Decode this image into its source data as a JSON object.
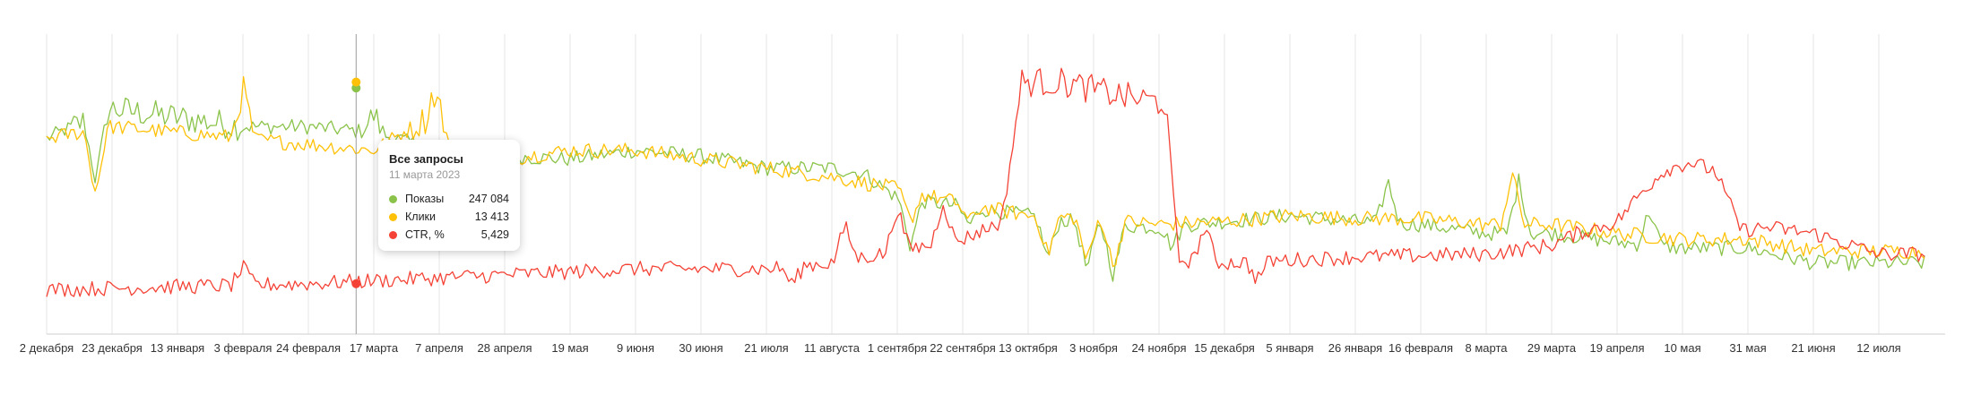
{
  "chart_data": {
    "type": "line",
    "x_ticks": [
      "2 декабря",
      "23 декабря",
      "13 января",
      "3 февраля",
      "24 февраля",
      "17 марта",
      "7 апреля",
      "28 апреля",
      "19 мая",
      "9 июня",
      "30 июня",
      "21 июля",
      "11 августа",
      "1 сентября",
      "22 сентября",
      "13 октября",
      "3 ноября",
      "24 ноября",
      "15 декабря",
      "5 января",
      "26 января",
      "16 февраля",
      "8 марта",
      "29 марта",
      "19 апреля",
      "10 мая",
      "31 мая",
      "21 июня",
      "12 июля"
    ],
    "grid": true,
    "series_colors": {
      "shows": "#8bc34a",
      "clicks": "#ffc107",
      "ctr": "#f44336"
    },
    "series": [
      {
        "key": "shows",
        "anchors": [
          [
            0,
            66
          ],
          [
            1,
            76
          ],
          [
            2,
            73
          ],
          [
            3,
            70
          ],
          [
            4,
            70
          ],
          [
            5,
            68
          ],
          [
            6,
            62
          ],
          [
            7,
            60
          ],
          [
            8,
            59
          ],
          [
            9,
            62
          ],
          [
            10,
            60
          ],
          [
            11,
            56
          ],
          [
            12,
            56
          ],
          [
            12.5,
            54
          ],
          [
            13,
            46
          ],
          [
            14,
            43
          ],
          [
            15,
            40
          ],
          [
            16,
            37
          ],
          [
            17,
            36
          ],
          [
            18,
            38
          ],
          [
            19,
            40
          ],
          [
            20,
            38
          ],
          [
            21,
            37
          ],
          [
            22,
            34
          ],
          [
            23,
            34
          ],
          [
            24,
            31
          ],
          [
            25,
            29
          ],
          [
            26,
            29
          ],
          [
            27,
            24
          ],
          [
            28,
            24
          ]
        ],
        "spikes": [
          [
            0.75,
            -22
          ],
          [
            5,
            6
          ],
          [
            13.2,
            -16
          ],
          [
            14.1,
            -6
          ],
          [
            15.3,
            -14
          ],
          [
            15.9,
            -16
          ],
          [
            16.3,
            -17
          ],
          [
            17.2,
            -7
          ],
          [
            20.5,
            14
          ],
          [
            22.5,
            18
          ],
          [
            24.5,
            12
          ]
        ]
      },
      {
        "key": "clicks",
        "anchors": [
          [
            0,
            66
          ],
          [
            1,
            70
          ],
          [
            2,
            68
          ],
          [
            3,
            66
          ],
          [
            4,
            64
          ],
          [
            5,
            62
          ],
          [
            5.9,
            74
          ],
          [
            6,
            60
          ],
          [
            7,
            59
          ],
          [
            8,
            62
          ],
          [
            9,
            62
          ],
          [
            10,
            59
          ],
          [
            11,
            56
          ],
          [
            12,
            53
          ],
          [
            12.5,
            51
          ],
          [
            13,
            49
          ],
          [
            14,
            44
          ],
          [
            15,
            40
          ],
          [
            16,
            39
          ],
          [
            17,
            37
          ],
          [
            18,
            38
          ],
          [
            19,
            40
          ],
          [
            20,
            39
          ],
          [
            21,
            39
          ],
          [
            22,
            37
          ],
          [
            23,
            37
          ],
          [
            24,
            34
          ],
          [
            25,
            32
          ],
          [
            26,
            32
          ],
          [
            27,
            28
          ],
          [
            28,
            28
          ]
        ],
        "spikes": [
          [
            0.75,
            -22
          ],
          [
            3,
            17
          ],
          [
            6,
            18
          ],
          [
            13.2,
            -10
          ],
          [
            14.1,
            -6
          ],
          [
            15.3,
            -13
          ],
          [
            15.9,
            -15
          ],
          [
            16.3,
            -16
          ],
          [
            22.4,
            17
          ]
        ]
      },
      {
        "key": "ctr",
        "anchors": [
          [
            0,
            15
          ],
          [
            4,
            17
          ],
          [
            5,
            18
          ],
          [
            7,
            20
          ],
          [
            9,
            22
          ],
          [
            11,
            22
          ],
          [
            12,
            24
          ],
          [
            13,
            28
          ],
          [
            14,
            32
          ],
          [
            14.6,
            38
          ],
          [
            14.9,
            85
          ],
          [
            15.5,
            85
          ],
          [
            16.5,
            80
          ],
          [
            17.1,
            78
          ],
          [
            17.3,
            25
          ],
          [
            18,
            24
          ],
          [
            20,
            26
          ],
          [
            22,
            27
          ],
          [
            23,
            30
          ],
          [
            23.4,
            34
          ],
          [
            24,
            38
          ],
          [
            24.3,
            46
          ],
          [
            24.7,
            55
          ],
          [
            25.1,
            58
          ],
          [
            25.5,
            55
          ],
          [
            25.9,
            35
          ],
          [
            26.3,
            36
          ],
          [
            27,
            34
          ],
          [
            28,
            27
          ]
        ],
        "spikes": [
          [
            3,
            6
          ],
          [
            11.4,
            -6
          ],
          [
            12.2,
            12
          ],
          [
            13,
            15
          ],
          [
            13.7,
            14
          ],
          [
            17.7,
            12
          ],
          [
            18.5,
            -6
          ]
        ]
      }
    ],
    "tooltip": {
      "title": "Все запросы",
      "date": "11 марта 2023",
      "rows": [
        {
          "key": "shows",
          "label": "Показы",
          "value": "247 084",
          "color": "#8bc34a"
        },
        {
          "key": "clicks",
          "label": "Клики",
          "value": "13 413",
          "color": "#ffc107"
        },
        {
          "key": "ctr",
          "label": "CTR, %",
          "value": "5,429",
          "color": "#f44336"
        }
      ]
    },
    "hover": {
      "index": 4.73,
      "shows_level": 83,
      "clicks_level": 85,
      "ctr_level": 17
    }
  }
}
